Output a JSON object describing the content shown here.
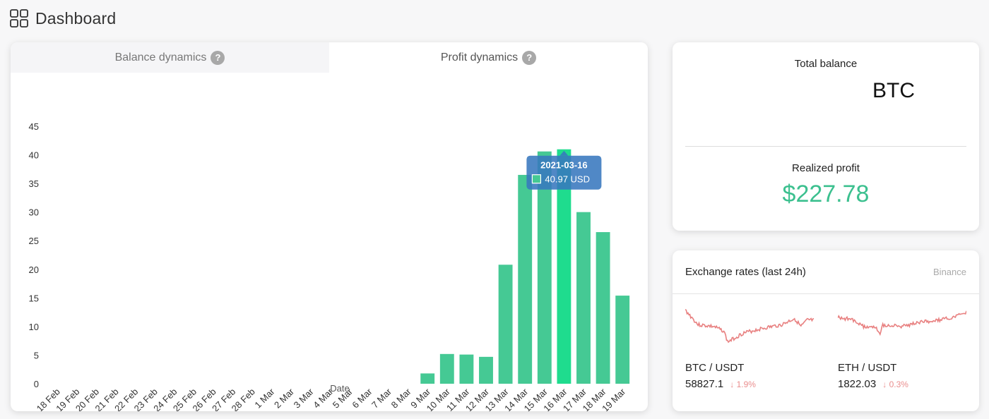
{
  "header": {
    "title": "Dashboard",
    "icon": "grid-icon"
  },
  "tabs": [
    {
      "label": "Balance dynamics",
      "active": false,
      "help_icon": "?"
    },
    {
      "label": "Profit dynamics",
      "active": true,
      "help_icon": "?"
    }
  ],
  "chart_data": {
    "type": "bar",
    "xlabel": "Date",
    "ylabel": "",
    "ylim": [
      0,
      45
    ],
    "yticks": [
      0,
      5,
      10,
      15,
      20,
      25,
      30,
      35,
      40,
      45
    ],
    "categories": [
      "18 Feb",
      "19 Feb",
      "20 Feb",
      "21 Feb",
      "22 Feb",
      "23 Feb",
      "24 Feb",
      "25 Feb",
      "26 Feb",
      "27 Feb",
      "28 Feb",
      "1 Mar",
      "2 Mar",
      "3 Mar",
      "4 Mar",
      "5 Mar",
      "6 Mar",
      "7 Mar",
      "8 Mar",
      "9 Mar",
      "10 Mar",
      "11 Mar",
      "12 Mar",
      "13 Mar",
      "14 Mar",
      "15 Mar",
      "16 Mar",
      "17 Mar",
      "18 Mar",
      "19 Mar"
    ],
    "values": [
      0,
      0,
      0,
      0,
      0,
      0,
      0,
      0,
      0,
      0,
      0,
      0,
      0,
      0,
      0,
      0,
      0,
      0,
      0,
      1.8,
      5.2,
      5.1,
      4.7,
      20.8,
      36.5,
      40.6,
      40.97,
      30,
      26.5,
      15.4
    ],
    "bar_color": "#45c994",
    "highlight_color": "#1fdc8e",
    "highlight_index": 26,
    "tooltip": {
      "date": "2021-03-16",
      "value": "40.97 USD"
    }
  },
  "balance": {
    "total_label": "Total balance",
    "currency": "BTC",
    "realized_label": "Realized profit",
    "realized_value": "$227.78",
    "profit_color": "#3cc08f"
  },
  "rates": {
    "title": "Exchange rates (last 24h)",
    "source": "Binance",
    "pairs": [
      {
        "name": "BTC / USDT",
        "price": "58827.1",
        "change": "1.9%",
        "direction": "down",
        "icon": "arrow-down-icon"
      },
      {
        "name": "ETH / USDT",
        "price": "1822.03",
        "change": "0.3%",
        "direction": "down",
        "icon": "arrow-down-icon"
      }
    ],
    "line_color": "#e88080"
  }
}
